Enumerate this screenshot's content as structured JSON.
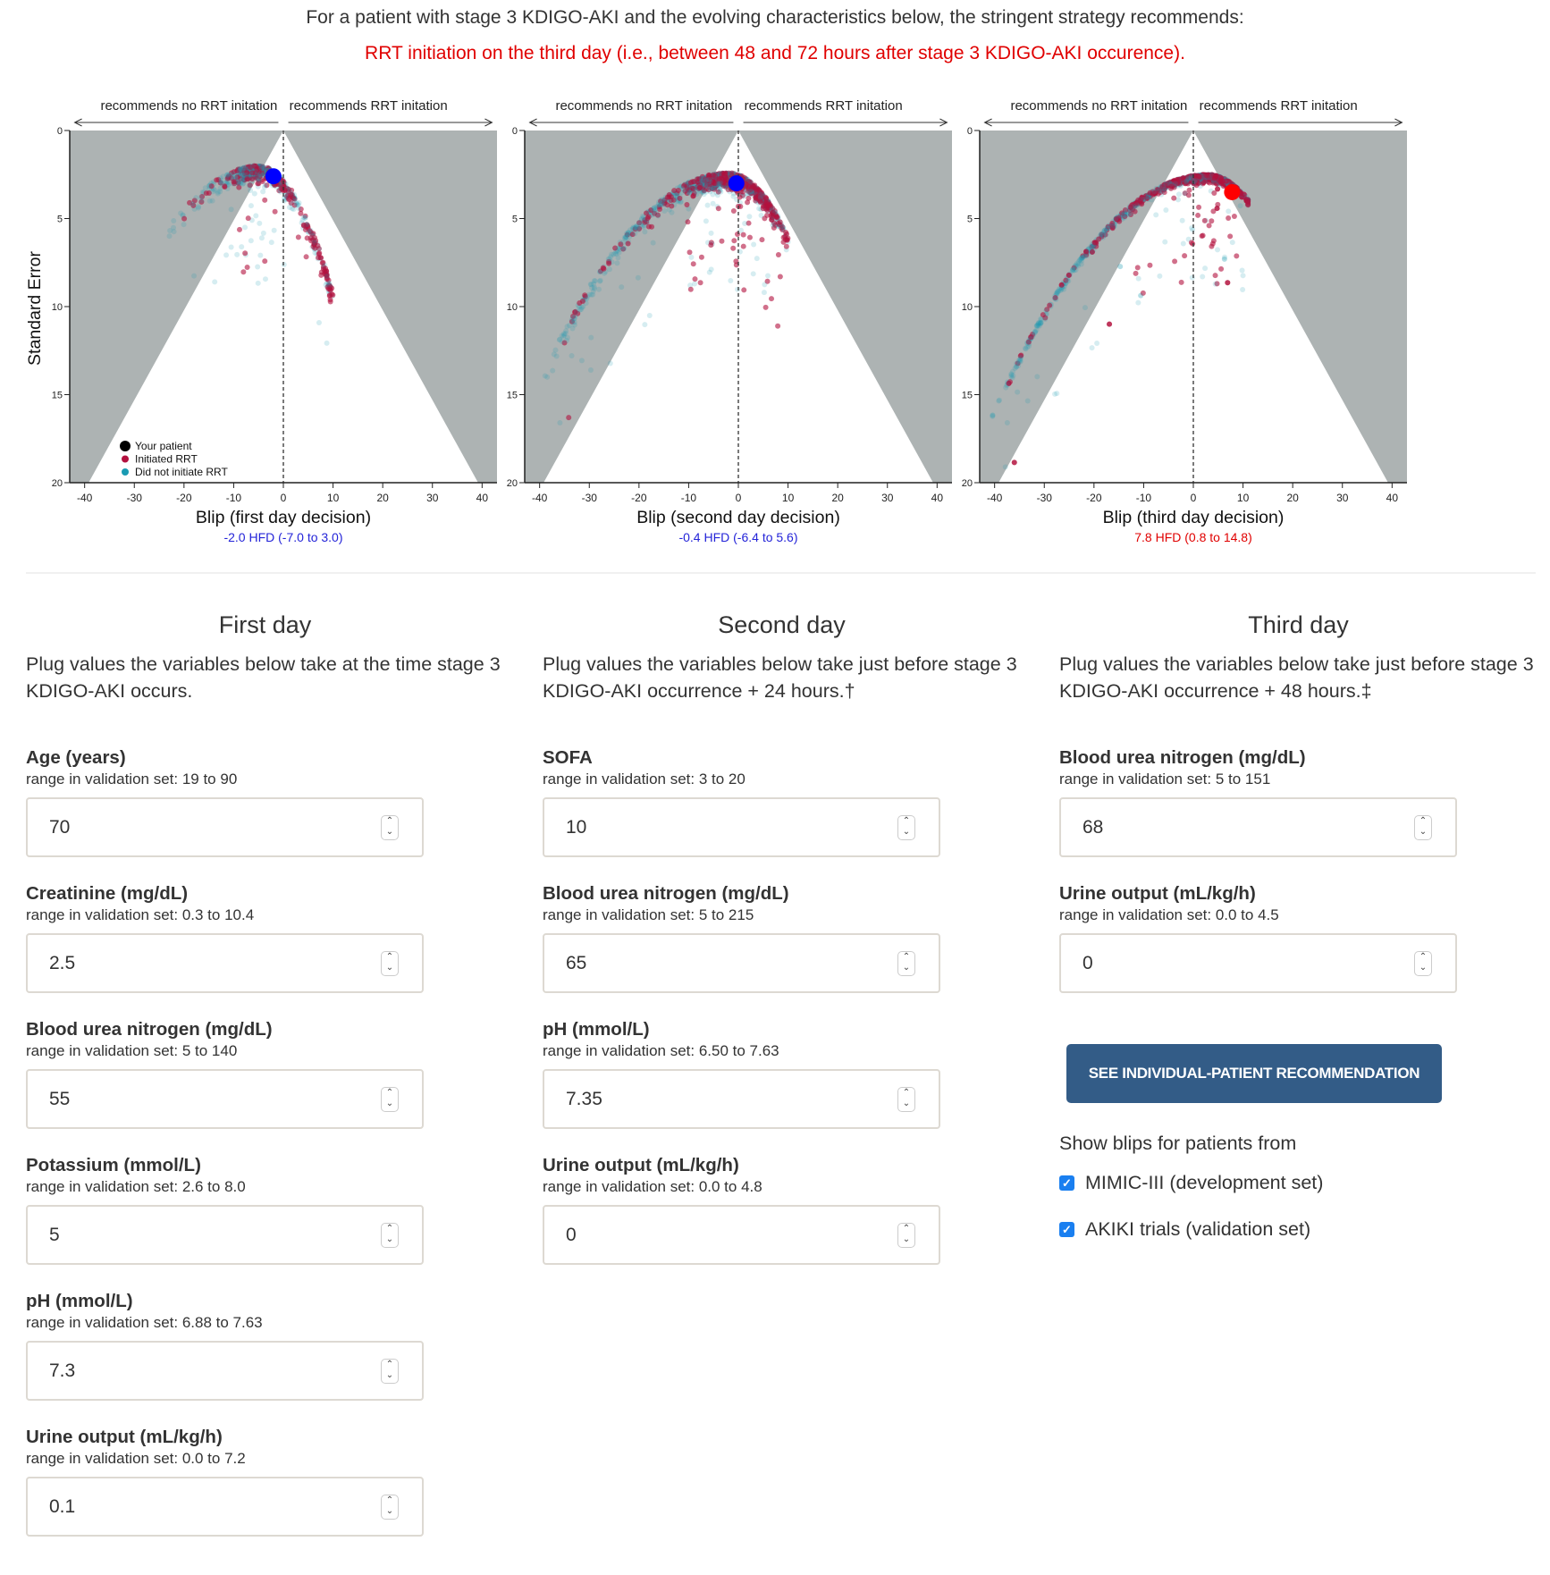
{
  "header": {
    "line1": "For a patient with stage 3 KDIGO-AKI and the evolving characteristics below, the stringent strategy recommends:",
    "line2": "RRT initiation on the third day (i.e., between 48 and 72 hours after stage 3 KDIGO-AKI occurence)."
  },
  "colors": {
    "blue": "#0000ff",
    "red": "#ff0000",
    "initiated": "#b3103e",
    "not_initiated": "#1a9bb3",
    "shade": "#adb3b3",
    "button": "#335c87"
  },
  "chart_data": [
    {
      "type": "scatter",
      "top_left": "recommends no RRT initation",
      "top_right": "recommends RRT initation",
      "ylabel": "Standard Error",
      "xlabel": "Blip (first day decision)",
      "summary": "-2.0 HFD (-7.0 to 3.0)",
      "summary_color": "#2323d8",
      "xlim": [
        -43,
        43
      ],
      "ylim": [
        20,
        0
      ],
      "xticks": [
        "-40",
        "-30",
        "-20",
        "-10",
        "0",
        "10",
        "20",
        "30",
        "40"
      ],
      "yticks": [
        "0",
        "5",
        "10",
        "15",
        "20"
      ],
      "patient": {
        "blip": -2.0,
        "se": 2.6,
        "color": "#0000ff"
      },
      "cloud": {
        "shape": "arc",
        "xmin": -24,
        "xmax": 10,
        "peak": -5,
        "se0": 2.0,
        "k": 0.0105,
        "n": 700
      },
      "legend": [
        "Your patient",
        "Initiated RRT",
        "Did not initiate RRT"
      ],
      "legend_position": "bottom-left"
    },
    {
      "type": "scatter",
      "top_left": "recommends no RRT initation",
      "top_right": "recommends RRT initation",
      "ylabel": "",
      "xlabel": "Blip (second day decision)",
      "summary": "-0.4 HFD (-6.4 to 5.6)",
      "summary_color": "#2323d8",
      "xlim": [
        -43,
        43
      ],
      "ylim": [
        20,
        0
      ],
      "xticks": [
        "-40",
        "-30",
        "-20",
        "-10",
        "0",
        "10",
        "20",
        "30",
        "40"
      ],
      "yticks": [
        "0",
        "5",
        "10",
        "15",
        "20"
      ],
      "patient": {
        "blip": -0.4,
        "se": 3.0,
        "color": "#0000ff"
      },
      "cloud": {
        "shape": "arc",
        "xmin": -40,
        "xmax": 10,
        "peak": -2,
        "se0": 2.4,
        "k": 0.0082,
        "n": 1200
      }
    },
    {
      "type": "scatter",
      "top_left": "recommends no RRT initation",
      "top_right": "recommends RRT initation",
      "ylabel": "",
      "xlabel": "Blip (third day decision)",
      "summary": "7.8 HFD (0.8 to 14.8)",
      "summary_color": "#e00000",
      "xlim": [
        -43,
        43
      ],
      "ylim": [
        20,
        0
      ],
      "xticks": [
        "-40",
        "-30",
        "-20",
        "-10",
        "0",
        "10",
        "20",
        "30",
        "40"
      ],
      "yticks": [
        "0",
        "5",
        "10",
        "15",
        "20"
      ],
      "patient": {
        "blip": 7.8,
        "se": 3.5,
        "color": "#ff0000"
      },
      "cloud": {
        "shape": "line",
        "xmin": -42,
        "xmax": 9,
        "peak": 3,
        "se0": 2.5,
        "k": 0.0072,
        "n": 1300
      }
    }
  ],
  "columns": [
    {
      "title": "First day",
      "desc": "Plug values the variables below take at the time stage 3 KDIGO-AKI occurs.",
      "fields": [
        {
          "label": "Age (years)",
          "range": "range in validation set: 19 to 90",
          "value": "70"
        },
        {
          "label": "Creatinine (mg/dL)",
          "range": "range in validation set: 0.3 to 10.4",
          "value": "2.5"
        },
        {
          "label": "Blood urea nitrogen (mg/dL)",
          "range": "range in validation set: 5 to 140",
          "value": "55"
        },
        {
          "label": "Potassium (mmol/L)",
          "range": "range in validation set: 2.6 to 8.0",
          "value": "5"
        },
        {
          "label": "pH (mmol/L)",
          "range": "range in validation set: 6.88 to 7.63",
          "value": "7.3"
        },
        {
          "label": "Urine output (mL/kg/h)",
          "range": "range in validation set: 0.0 to 7.2",
          "value": "0.1"
        }
      ]
    },
    {
      "title": "Second day",
      "desc": "Plug values the variables below take just before stage 3 KDIGO-AKI occurrence + 24 hours.†",
      "fields": [
        {
          "label": "SOFA",
          "range": "range in validation set: 3 to 20",
          "value": "10"
        },
        {
          "label": "Blood urea nitrogen (mg/dL)",
          "range": "range in validation set: 5 to 215",
          "value": "65"
        },
        {
          "label": "pH (mmol/L)",
          "range": "range in validation set: 6.50 to 7.63",
          "value": "7.35"
        },
        {
          "label": "Urine output (mL/kg/h)",
          "range": "range in validation set: 0.0 to 4.8",
          "value": "0"
        }
      ]
    },
    {
      "title": "Third day",
      "desc": "Plug values the variables below take just before stage 3 KDIGO-AKI occurrence + 48 hours.‡",
      "fields": [
        {
          "label": "Blood urea nitrogen (mg/dL)",
          "range": "range in validation set: 5 to 151",
          "value": "68"
        },
        {
          "label": "Urine output (mL/kg/h)",
          "range": "range in validation set: 0.0 to 4.5",
          "value": "0"
        }
      ]
    }
  ],
  "action": {
    "button": "SEE INDIVIDUAL-PATIENT RECOMMENDATION",
    "show_label": "Show blips for patients from",
    "options": [
      {
        "label": "MIMIC-III (development set)",
        "checked": true
      },
      {
        "label": "AKIKI trials (validation set)",
        "checked": true
      }
    ]
  }
}
